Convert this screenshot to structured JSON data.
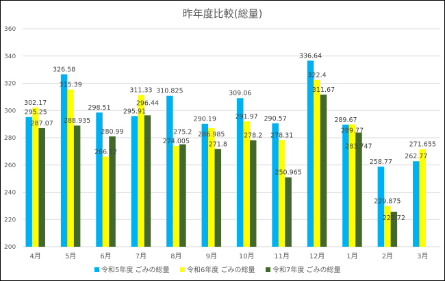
{
  "chart_data": {
    "type": "bar",
    "title": "昨年度比較(総量)",
    "xlabel": "",
    "ylabel": "",
    "ylim": [
      200,
      360
    ],
    "yticks": [
      200,
      220,
      240,
      260,
      280,
      300,
      320,
      340,
      360
    ],
    "grid": true,
    "legend": "bottom",
    "categories": [
      "4月",
      "5月",
      "6月",
      "7月",
      "8月",
      "9月",
      "10月",
      "11月",
      "12月",
      "1月",
      "2月",
      "3月"
    ],
    "series": [
      {
        "name": "令和5年度 ごみの総量",
        "color": "#00B0F0",
        "values": [
          295.25,
          326.58,
          298.51,
          295.91,
          310.825,
          290.19,
          309.06,
          290.57,
          336.64,
          289.67,
          258.77,
          262.77
        ]
      },
      {
        "name": "令和6年度 ごみの総量",
        "color": "#FFFF00",
        "values": [
          302.17,
          315.39,
          266.12,
          311.33,
          274.005,
          286.985,
          291.97,
          278.31,
          322.4,
          289.77,
          229.875,
          271.655
        ]
      },
      {
        "name": "令和7年度 ごみの総量",
        "color": "#43682B",
        "values": [
          287.07,
          288.935,
          280.99,
          296.44,
          275.2,
          271.8,
          278.2,
          250.965,
          311.67,
          283.747,
          225.72,
          null
        ]
      }
    ]
  }
}
